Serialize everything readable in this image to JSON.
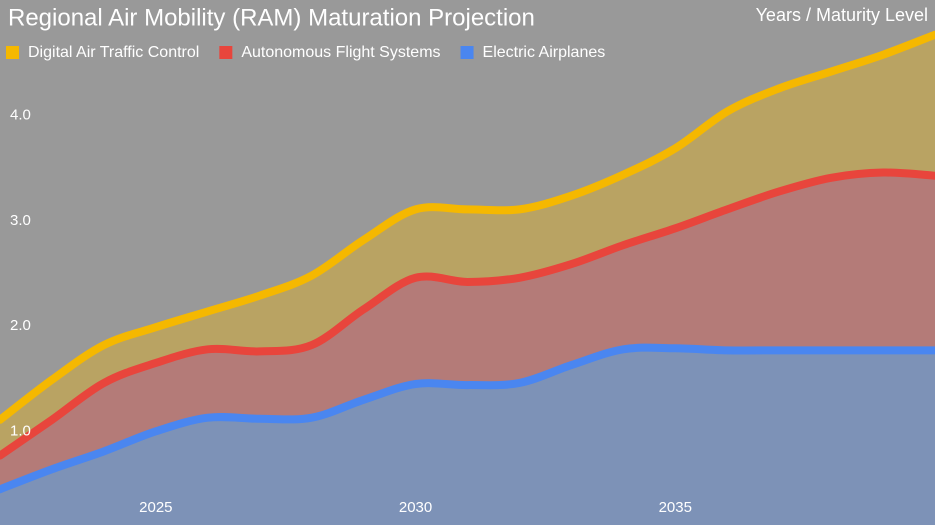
{
  "chart_data": {
    "type": "stacked-area",
    "title": "Regional Air Mobility (RAM) Maturation Projection",
    "axis_label": "Years / Maturity Level",
    "x": [
      2022,
      2023,
      2024,
      2025,
      2026,
      2027,
      2028,
      2029,
      2030,
      2031,
      2032,
      2033,
      2034,
      2035,
      2036,
      2037,
      2038,
      2039,
      2040
    ],
    "xlim": [
      2022,
      2040
    ],
    "xticks": [
      2025,
      2030,
      2035
    ],
    "ylim": [
      0.11,
      5.1
    ],
    "yticks": [
      {
        "value": 1,
        "label": "1.0"
      },
      {
        "value": 2,
        "label": "2.0"
      },
      {
        "value": 3,
        "label": "3.0"
      },
      {
        "value": 4,
        "label": "4.0"
      }
    ],
    "grid": false,
    "legend": "top-left",
    "series": [
      {
        "name": "Electric Airplanes",
        "color": "#4a86f0",
        "values": [
          0.45,
          0.64,
          0.81,
          1.0,
          1.13,
          1.12,
          1.13,
          1.3,
          1.45,
          1.44,
          1.46,
          1.63,
          1.78,
          1.79,
          1.77,
          1.77,
          1.77,
          1.77,
          1.77
        ]
      },
      {
        "name": "Autonomous Flight Systems",
        "color": "#e8453c",
        "values": [
          0.32,
          0.47,
          0.65,
          0.65,
          0.65,
          0.64,
          0.69,
          0.86,
          1.01,
          0.98,
          1.0,
          0.96,
          0.99,
          1.14,
          1.34,
          1.51,
          1.64,
          1.69,
          1.66
        ]
      },
      {
        "name": "Digital Air Traffic Control",
        "color": "#f5b800",
        "values": [
          0.34,
          0.38,
          0.36,
          0.34,
          0.36,
          0.53,
          0.66,
          0.66,
          0.65,
          0.69,
          0.65,
          0.65,
          0.67,
          0.76,
          0.93,
          0.98,
          1.01,
          1.12,
          1.34
        ]
      }
    ]
  }
}
